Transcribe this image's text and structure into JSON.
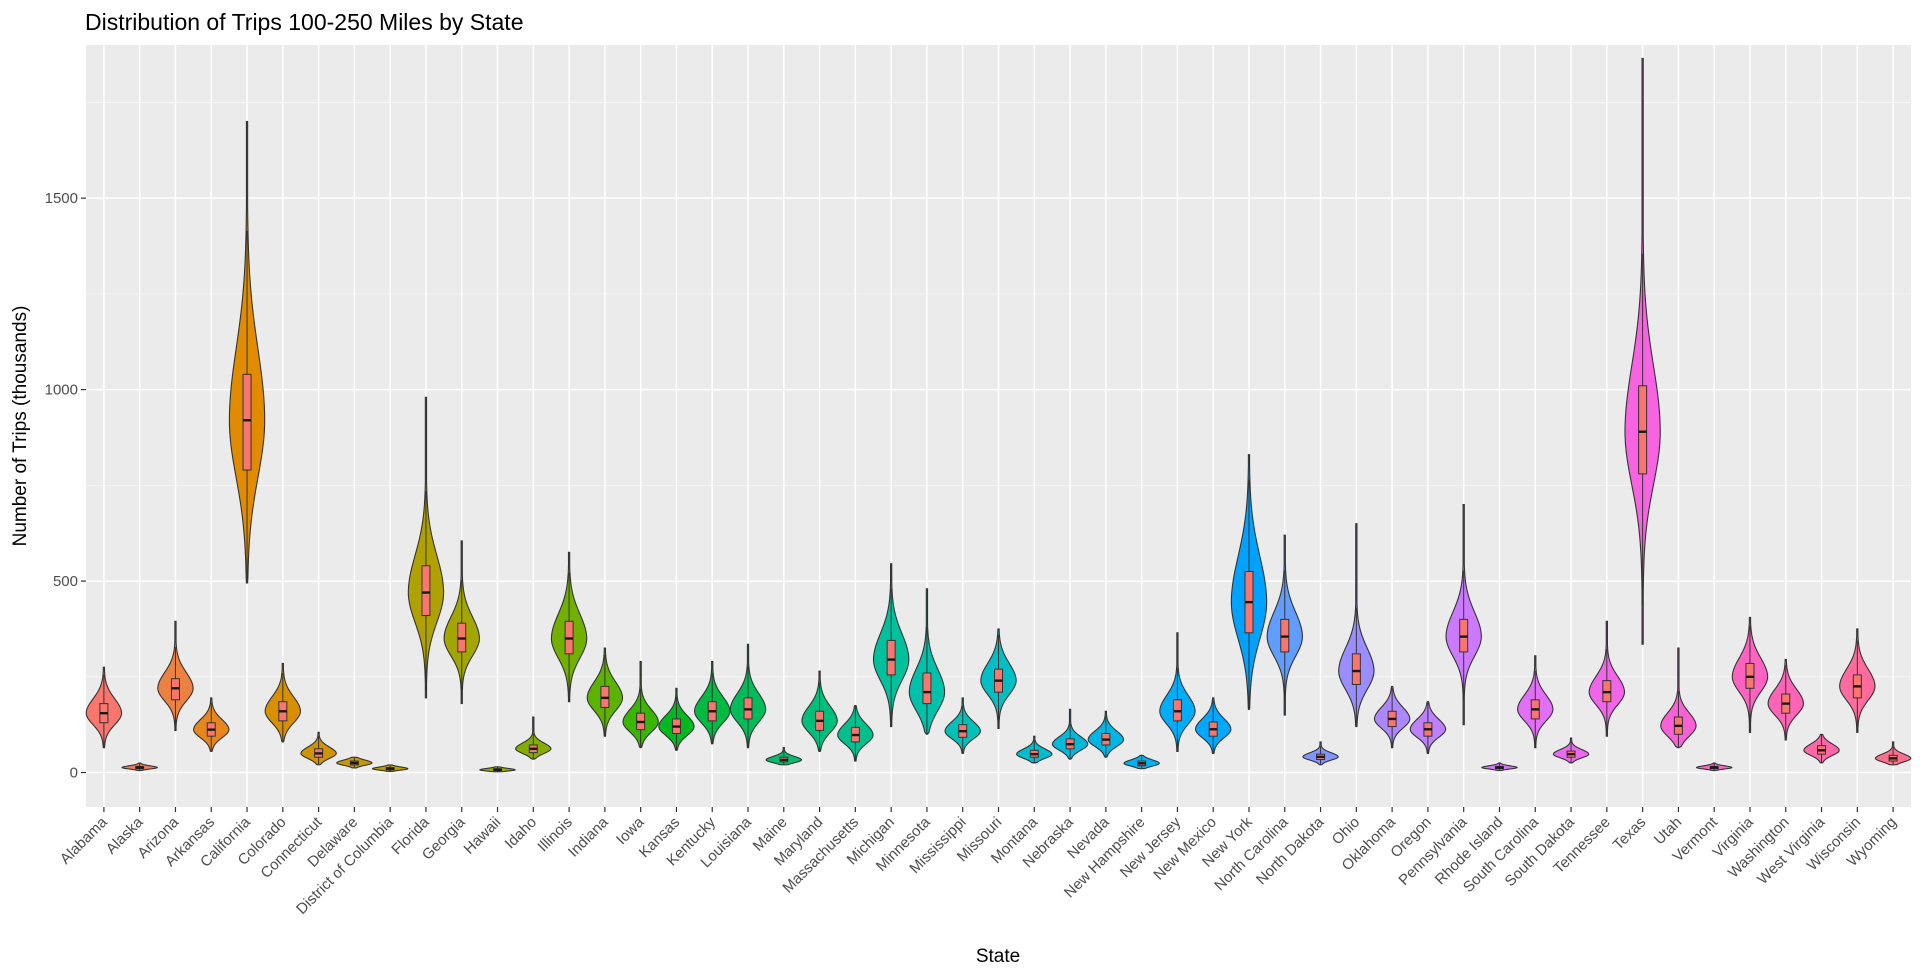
{
  "chart_data": {
    "type": "violin",
    "title": "Distribution of Trips 100-250 Miles by State",
    "xlabel": "State",
    "ylabel": "Number of Trips (thousands)",
    "ylim": [
      -90,
      1900
    ],
    "y_ticks": [
      0,
      500,
      1000,
      1500
    ],
    "y_tick_labels": [
      "0",
      "500",
      "1000",
      "1500"
    ],
    "grid": true,
    "legend": "none",
    "box_fill": "#f8766d",
    "states": [
      {
        "name": "Alabama",
        "color": "#F8766D",
        "min": 65,
        "max": 275,
        "q1": 130,
        "median": 155,
        "q3": 180
      },
      {
        "name": "Alaska",
        "color": "#F37B59",
        "min": 5,
        "max": 25,
        "q1": 10,
        "median": 13,
        "q3": 16
      },
      {
        "name": "Arizona",
        "color": "#ED8141",
        "min": 110,
        "max": 395,
        "q1": 190,
        "median": 220,
        "q3": 245
      },
      {
        "name": "Arkansas",
        "color": "#E7861B",
        "min": 55,
        "max": 195,
        "q1": 95,
        "median": 112,
        "q3": 130
      },
      {
        "name": "California",
        "color": "#E08B00",
        "min": 495,
        "max": 1700,
        "q1": 790,
        "median": 920,
        "q3": 1040
      },
      {
        "name": "Colorado",
        "color": "#D89000",
        "min": 80,
        "max": 285,
        "q1": 135,
        "median": 160,
        "q3": 185
      },
      {
        "name": "Connecticut",
        "color": "#CF9400",
        "min": 20,
        "max": 105,
        "q1": 40,
        "median": 50,
        "q3": 62
      },
      {
        "name": "Delaware",
        "color": "#C59900",
        "min": 12,
        "max": 40,
        "q1": 20,
        "median": 25,
        "q3": 30
      },
      {
        "name": "District of Columbia",
        "color": "#BB9D00",
        "min": 3,
        "max": 20,
        "q1": 7,
        "median": 10,
        "q3": 13
      },
      {
        "name": "Florida",
        "color": "#AFA100",
        "min": 195,
        "max": 980,
        "q1": 410,
        "median": 470,
        "q3": 540
      },
      {
        "name": "Georgia",
        "color": "#A3A500",
        "min": 180,
        "max": 605,
        "q1": 315,
        "median": 350,
        "q3": 390
      },
      {
        "name": "Hawaii",
        "color": "#95A900",
        "min": 2,
        "max": 15,
        "q1": 5,
        "median": 7,
        "q3": 10
      },
      {
        "name": "Idaho",
        "color": "#85AD00",
        "min": 35,
        "max": 145,
        "q1": 52,
        "median": 62,
        "q3": 72
      },
      {
        "name": "Illinois",
        "color": "#72B000",
        "min": 185,
        "max": 575,
        "q1": 310,
        "median": 350,
        "q3": 395
      },
      {
        "name": "Indiana",
        "color": "#5BB300",
        "min": 95,
        "max": 325,
        "q1": 170,
        "median": 195,
        "q3": 225
      },
      {
        "name": "Iowa",
        "color": "#39B600",
        "min": 65,
        "max": 290,
        "q1": 112,
        "median": 132,
        "q3": 155
      },
      {
        "name": "Kansas",
        "color": "#00B81F",
        "min": 58,
        "max": 220,
        "q1": 102,
        "median": 120,
        "q3": 140
      },
      {
        "name": "Kentucky",
        "color": "#00BA42",
        "min": 75,
        "max": 290,
        "q1": 135,
        "median": 160,
        "q3": 185
      },
      {
        "name": "Louisiana",
        "color": "#00BC59",
        "min": 65,
        "max": 335,
        "q1": 140,
        "median": 165,
        "q3": 195
      },
      {
        "name": "Maine",
        "color": "#00BE6C",
        "min": 20,
        "max": 65,
        "q1": 28,
        "median": 33,
        "q3": 40
      },
      {
        "name": "Maryland",
        "color": "#00BF7D",
        "min": 55,
        "max": 265,
        "q1": 110,
        "median": 135,
        "q3": 160
      },
      {
        "name": "Massachusetts",
        "color": "#00C08D",
        "min": 30,
        "max": 175,
        "q1": 80,
        "median": 98,
        "q3": 118
      },
      {
        "name": "Michigan",
        "color": "#00C19C",
        "min": 120,
        "max": 545,
        "q1": 255,
        "median": 295,
        "q3": 345
      },
      {
        "name": "Minnesota",
        "color": "#00C1AA",
        "min": 100,
        "max": 480,
        "q1": 180,
        "median": 210,
        "q3": 260
      },
      {
        "name": "Mississippi",
        "color": "#00C0B8",
        "min": 50,
        "max": 195,
        "q1": 92,
        "median": 108,
        "q3": 125
      },
      {
        "name": "Missouri",
        "color": "#00BFC4",
        "min": 115,
        "max": 375,
        "q1": 210,
        "median": 240,
        "q3": 270
      },
      {
        "name": "Montana",
        "color": "#00BDD0",
        "min": 25,
        "max": 95,
        "q1": 40,
        "median": 48,
        "q3": 58
      },
      {
        "name": "Nebraska",
        "color": "#00BADB",
        "min": 35,
        "max": 165,
        "q1": 62,
        "median": 74,
        "q3": 88
      },
      {
        "name": "Nevada",
        "color": "#00B6E5",
        "min": 40,
        "max": 160,
        "q1": 72,
        "median": 86,
        "q3": 102
      },
      {
        "name": "New Hampshire",
        "color": "#00B2EF",
        "min": 10,
        "max": 45,
        "q1": 18,
        "median": 24,
        "q3": 30
      },
      {
        "name": "New Jersey",
        "color": "#00ADF8",
        "min": 55,
        "max": 365,
        "q1": 135,
        "median": 160,
        "q3": 190
      },
      {
        "name": "New Mexico",
        "color": "#00A8FF",
        "min": 50,
        "max": 195,
        "q1": 95,
        "median": 113,
        "q3": 132
      },
      {
        "name": "New York",
        "color": "#00A2FF",
        "min": 165,
        "max": 830,
        "q1": 365,
        "median": 445,
        "q3": 525
      },
      {
        "name": "North Carolina",
        "color": "#619CFF",
        "min": 150,
        "max": 620,
        "q1": 315,
        "median": 355,
        "q3": 400
      },
      {
        "name": "North Dakota",
        "color": "#8295FF",
        "min": 20,
        "max": 80,
        "q1": 34,
        "median": 41,
        "q3": 48
      },
      {
        "name": "Ohio",
        "color": "#9A8EFF",
        "min": 120,
        "max": 650,
        "q1": 230,
        "median": 265,
        "q3": 310
      },
      {
        "name": "Oklahoma",
        "color": "#AD87FF",
        "min": 65,
        "max": 225,
        "q1": 120,
        "median": 140,
        "q3": 160
      },
      {
        "name": "Oregon",
        "color": "#BD80FF",
        "min": 50,
        "max": 185,
        "q1": 95,
        "median": 113,
        "q3": 130
      },
      {
        "name": "Pennsylvania",
        "color": "#CB7AFF",
        "min": 125,
        "max": 700,
        "q1": 315,
        "median": 355,
        "q3": 400
      },
      {
        "name": "Rhode Island",
        "color": "#D774FD",
        "min": 5,
        "max": 25,
        "q1": 10,
        "median": 13,
        "q3": 16
      },
      {
        "name": "South Carolina",
        "color": "#E16FF7",
        "min": 65,
        "max": 305,
        "q1": 140,
        "median": 165,
        "q3": 190
      },
      {
        "name": "South Dakota",
        "color": "#EA6AF1",
        "min": 25,
        "max": 90,
        "q1": 40,
        "median": 48,
        "q3": 56
      },
      {
        "name": "Tennessee",
        "color": "#F166E9",
        "min": 95,
        "max": 395,
        "q1": 185,
        "median": 210,
        "q3": 240
      },
      {
        "name": "Texas",
        "color": "#F763E0",
        "min": 335,
        "max": 1865,
        "q1": 780,
        "median": 890,
        "q3": 1010
      },
      {
        "name": "Utah",
        "color": "#FB61D7",
        "min": 65,
        "max": 325,
        "q1": 100,
        "median": 122,
        "q3": 145
      },
      {
        "name": "Vermont",
        "color": "#FE61CC",
        "min": 5,
        "max": 25,
        "q1": 10,
        "median": 13,
        "q3": 16
      },
      {
        "name": "Virginia",
        "color": "#FF62C1",
        "min": 105,
        "max": 405,
        "q1": 220,
        "median": 250,
        "q3": 285
      },
      {
        "name": "Washington",
        "color": "#FF64B6",
        "min": 85,
        "max": 295,
        "q1": 155,
        "median": 180,
        "q3": 205
      },
      {
        "name": "West Virginia",
        "color": "#FF67A9",
        "min": 25,
        "max": 100,
        "q1": 48,
        "median": 58,
        "q3": 70
      },
      {
        "name": "Wisconsin",
        "color": "#FF6B9C",
        "min": 105,
        "max": 375,
        "q1": 195,
        "median": 225,
        "q3": 255
      },
      {
        "name": "Wyoming",
        "color": "#FC6F8E",
        "min": 20,
        "max": 80,
        "q1": 30,
        "median": 37,
        "q3": 45
      }
    ]
  }
}
